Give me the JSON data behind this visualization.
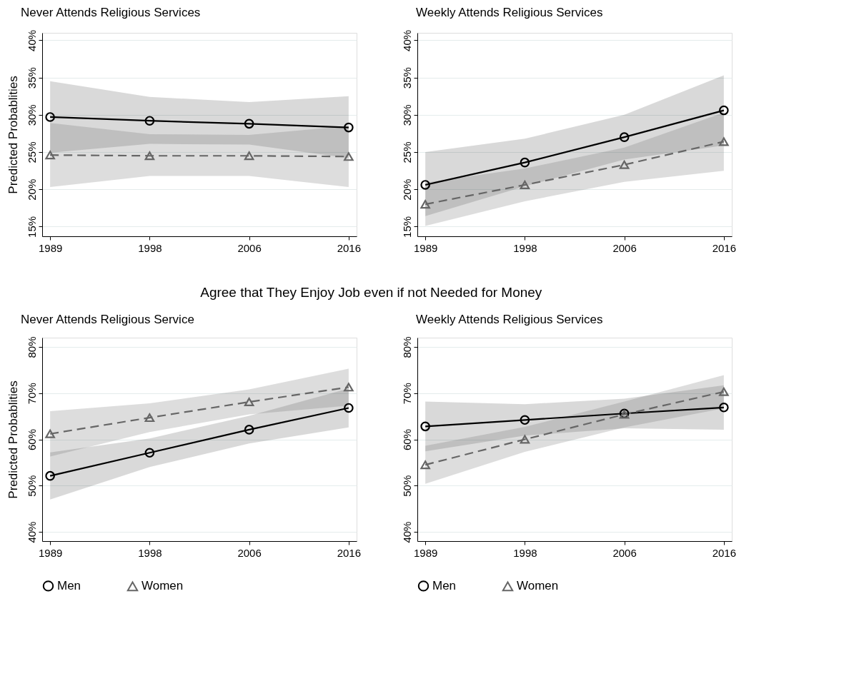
{
  "chart_data": [
    {
      "type": "line",
      "title": "Never Attends Religious Services",
      "ylabel": "Predicted Probablities",
      "categories": [
        "1989",
        "1998",
        "2006",
        "2016"
      ],
      "ylim": [
        13.7,
        41
      ],
      "yticks": [
        {
          "value": 15,
          "label": "15%"
        },
        {
          "value": 20,
          "label": "20%"
        },
        {
          "value": 25,
          "label": "25%"
        },
        {
          "value": 30,
          "label": "30%"
        },
        {
          "value": 35,
          "label": "35%"
        },
        {
          "value": 40,
          "label": "40%"
        }
      ],
      "grid": "y",
      "legend": false,
      "series": [
        {
          "color": "#000000",
          "marker": "circle",
          "line_style": "solid",
          "values": [
            29.7,
            29.2,
            28.8,
            28.3
          ],
          "lower": [
            24.9,
            26.1,
            26.0,
            24.2
          ],
          "upper": [
            34.5,
            32.4,
            31.7,
            32.5
          ]
        },
        {
          "color": "#666666",
          "marker": "triangle",
          "line_style": "dashed",
          "values": [
            24.6,
            24.5,
            24.5,
            24.4
          ],
          "lower": [
            20.3,
            21.8,
            21.8,
            20.3
          ],
          "upper": [
            28.9,
            27.4,
            27.3,
            28.5
          ]
        }
      ]
    },
    {
      "type": "line",
      "title": "Weekly Attends Religious Services",
      "categories": [
        "1989",
        "1998",
        "2006",
        "2016"
      ],
      "ylim": [
        13.7,
        41
      ],
      "yticks": [
        {
          "value": 15,
          "label": "15%"
        },
        {
          "value": 20,
          "label": "20%"
        },
        {
          "value": 25,
          "label": "25%"
        },
        {
          "value": 30,
          "label": "30%"
        },
        {
          "value": 35,
          "label": "35%"
        },
        {
          "value": 40,
          "label": "40%"
        }
      ],
      "grid": "y",
      "legend": false,
      "series": [
        {
          "color": "#000000",
          "marker": "circle",
          "line_style": "solid",
          "values": [
            20.6,
            23.6,
            27.0,
            30.6
          ],
          "lower": [
            16.4,
            20.4,
            24.0,
            25.9
          ],
          "upper": [
            25.0,
            26.8,
            30.0,
            35.3
          ]
        },
        {
          "color": "#666666",
          "marker": "triangle",
          "line_style": "dashed",
          "values": [
            18.0,
            20.6,
            23.3,
            26.4
          ],
          "lower": [
            15.1,
            18.4,
            21.0,
            22.5
          ],
          "upper": [
            20.9,
            22.8,
            25.6,
            30.3
          ]
        }
      ]
    },
    {
      "type": "line",
      "title": "Never Attends Religious Service",
      "ylabel": "Predicted Probablities",
      "annotations": [
        "Agree that They Enjoy Job even if not Needed for Money"
      ],
      "categories": [
        "1989",
        "1998",
        "2006",
        "2016"
      ],
      "ylim": [
        38,
        82
      ],
      "yticks": [
        {
          "value": 40,
          "label": "40%"
        },
        {
          "value": 50,
          "label": "50%"
        },
        {
          "value": 60,
          "label": "60%"
        },
        {
          "value": 70,
          "label": "70%"
        },
        {
          "value": 80,
          "label": "80%"
        }
      ],
      "grid": "y",
      "legend": "bottom",
      "series": [
        {
          "name": "Men",
          "color": "#000000",
          "marker": "circle",
          "line_style": "solid",
          "values": [
            52.1,
            57.1,
            62.1,
            66.8
          ],
          "lower": [
            47.0,
            54.0,
            59.1,
            62.6
          ],
          "upper": [
            57.2,
            60.2,
            65.1,
            71.0
          ]
        },
        {
          "name": "Women",
          "color": "#666666",
          "marker": "triangle",
          "line_style": "dashed",
          "values": [
            61.2,
            64.7,
            68.1,
            71.3
          ],
          "lower": [
            56.3,
            61.6,
            65.4,
            67.3
          ],
          "upper": [
            66.1,
            67.8,
            70.8,
            75.3
          ]
        }
      ]
    },
    {
      "type": "line",
      "title": "Weekly Attends Religious Services",
      "categories": [
        "1989",
        "1998",
        "2006",
        "2016"
      ],
      "ylim": [
        38,
        82
      ],
      "yticks": [
        {
          "value": 40,
          "label": "40%"
        },
        {
          "value": 50,
          "label": "50%"
        },
        {
          "value": 60,
          "label": "60%"
        },
        {
          "value": 70,
          "label": "70%"
        },
        {
          "value": 80,
          "label": "80%"
        }
      ],
      "grid": "y",
      "legend": "bottom",
      "series": [
        {
          "name": "Men",
          "color": "#000000",
          "marker": "circle",
          "line_style": "solid",
          "values": [
            62.8,
            64.2,
            65.6,
            66.9
          ],
          "lower": [
            57.4,
            60.8,
            62.4,
            62.1
          ],
          "upper": [
            68.2,
            67.6,
            68.8,
            71.7
          ]
        },
        {
          "name": "Women",
          "color": "#666666",
          "marker": "triangle",
          "line_style": "dashed",
          "values": [
            54.5,
            60.0,
            65.4,
            70.3
          ],
          "lower": [
            50.4,
            57.3,
            62.6,
            66.7
          ],
          "upper": [
            58.6,
            62.7,
            68.2,
            73.9
          ]
        }
      ]
    }
  ]
}
